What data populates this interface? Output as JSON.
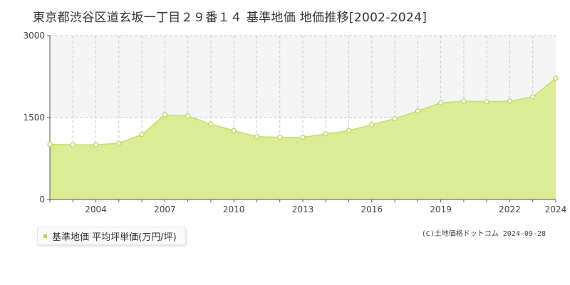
{
  "title": "東京都渋谷区道玄坂一丁目２９番１４ 基準地価 地価推移[2002-2024]",
  "copyright": "(C)土地価格ドットコム 2024-09-28",
  "colors": {
    "fill": "#dbeb96",
    "line": "#c4e064",
    "point_fill": "#ffffff",
    "point_stroke": "#b8d857",
    "legend_swatch": "#b5d44f",
    "grid": "#c9c9c9",
    "band": "#f5f5f5"
  },
  "chart_data": {
    "type": "area",
    "title": "東京都渋谷区道玄坂一丁目２９番１４ 基準地価 地価推移[2002-2024]",
    "xlabel": "",
    "ylabel": "",
    "x": [
      2002,
      2003,
      2004,
      2005,
      2006,
      2007,
      2008,
      2009,
      2010,
      2011,
      2012,
      2013,
      2014,
      2015,
      2016,
      2017,
      2018,
      2019,
      2020,
      2021,
      2022,
      2023,
      2024
    ],
    "xlim": [
      2002,
      2024
    ],
    "ylim": [
      0,
      3000
    ],
    "yticks": [
      "0",
      "1500",
      "3000"
    ],
    "xticks": [
      "2004",
      "2007",
      "2010",
      "2013",
      "2016",
      "2019",
      "2022",
      "2024"
    ],
    "grid": true,
    "legend_position": "bottom-left",
    "series": [
      {
        "name": "基準地価 平均坪単価(万円/坪)",
        "values": [
          1010,
          1000,
          1000,
          1030,
          1190,
          1550,
          1530,
          1380,
          1260,
          1150,
          1140,
          1140,
          1200,
          1260,
          1370,
          1480,
          1620,
          1770,
          1800,
          1790,
          1800,
          1880,
          2220
        ]
      }
    ]
  }
}
